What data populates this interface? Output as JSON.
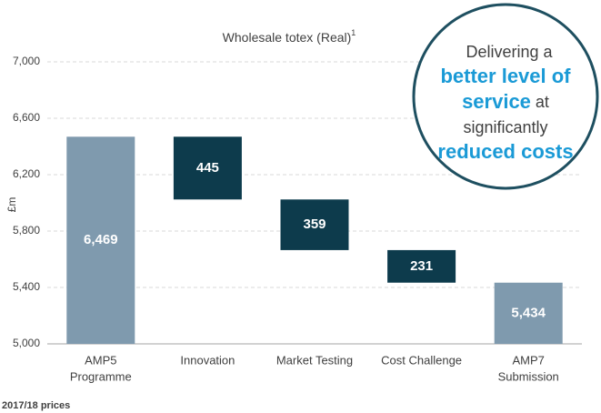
{
  "chart_data": {
    "type": "waterfall",
    "title": "Wholesale totex (Real)",
    "title_superscript": "1",
    "y_label": "£m",
    "categories": [
      [
        "AMP5",
        "Programme"
      ],
      [
        "Innovation"
      ],
      [
        "Market Testing"
      ],
      [
        "Cost Challenge"
      ],
      [
        "AMP7",
        "Submission"
      ]
    ],
    "values": [
      6469,
      445,
      359,
      231,
      5434
    ],
    "value_labels": [
      "6,469",
      "445",
      "359",
      "231",
      "5,434"
    ],
    "colors": [
      "#7f9aae",
      "#0d3b4c",
      "#0d3b4c",
      "#0d3b4c",
      "#7f9aae"
    ],
    "ylim": [
      5000,
      7000
    ],
    "yticks": [
      {
        "value": 5000,
        "label": "5,000"
      },
      {
        "value": 5400,
        "label": "5,400"
      },
      {
        "value": 5800,
        "label": "5,800"
      },
      {
        "value": 6200,
        "label": "6,200"
      },
      {
        "value": 6600,
        "label": "6,600"
      },
      {
        "value": 7000,
        "label": "7,000"
      }
    ],
    "grid": true,
    "footnote": "2017/18 prices",
    "callout": {
      "line1": "Delivering a",
      "line2": "better level of",
      "line3a": "service",
      "line3b": " at",
      "line4": "significantly",
      "line5": "reduced costs"
    }
  }
}
